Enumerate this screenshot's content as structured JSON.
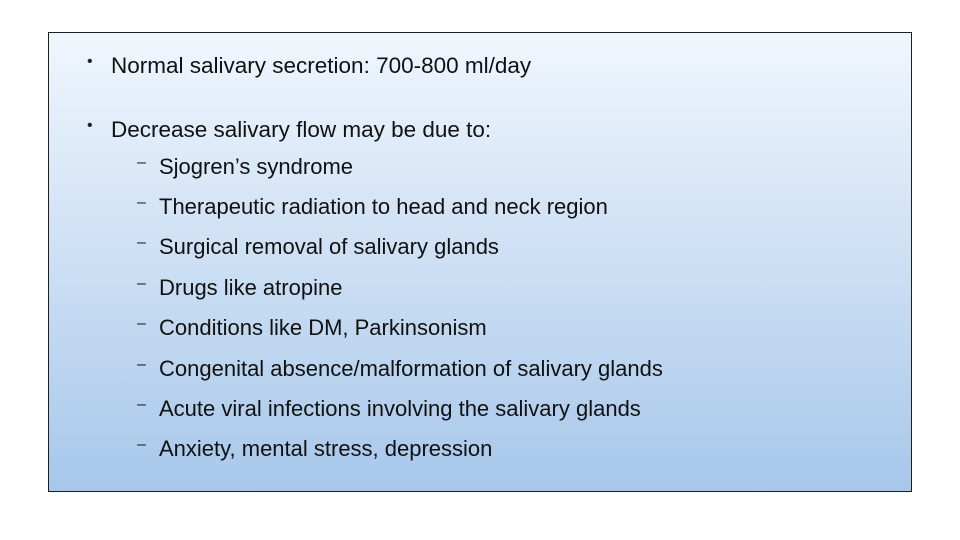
{
  "slide": {
    "background_outer": "#ffffff",
    "box_border_color": "#1f1f1f",
    "box_gradient_top": "#f0f6fd",
    "box_gradient_mid": "#c9ddf3",
    "box_gradient_bottom": "#a7c7ea",
    "text_color": "#111111",
    "font_family": "Comic Sans MS",
    "bullet_fontsize_pt": 17,
    "subbullet_fontsize_pt": 16.5,
    "bullets": [
      {
        "text": "Normal salivary secretion: 700-800 ml/day",
        "subitems": []
      },
      {
        "text": "Decrease salivary flow may be due to:",
        "subitems": [
          "Sjogren’s syndrome",
          "Therapeutic radiation to head and neck region",
          "Surgical removal of salivary glands",
          "Drugs like atropine",
          "Conditions like DM, Parkinsonism",
          "Congenital absence/malformation of salivary glands",
          "Acute viral infections involving the salivary glands",
          "Anxiety, mental stress, depression"
        ]
      }
    ]
  }
}
